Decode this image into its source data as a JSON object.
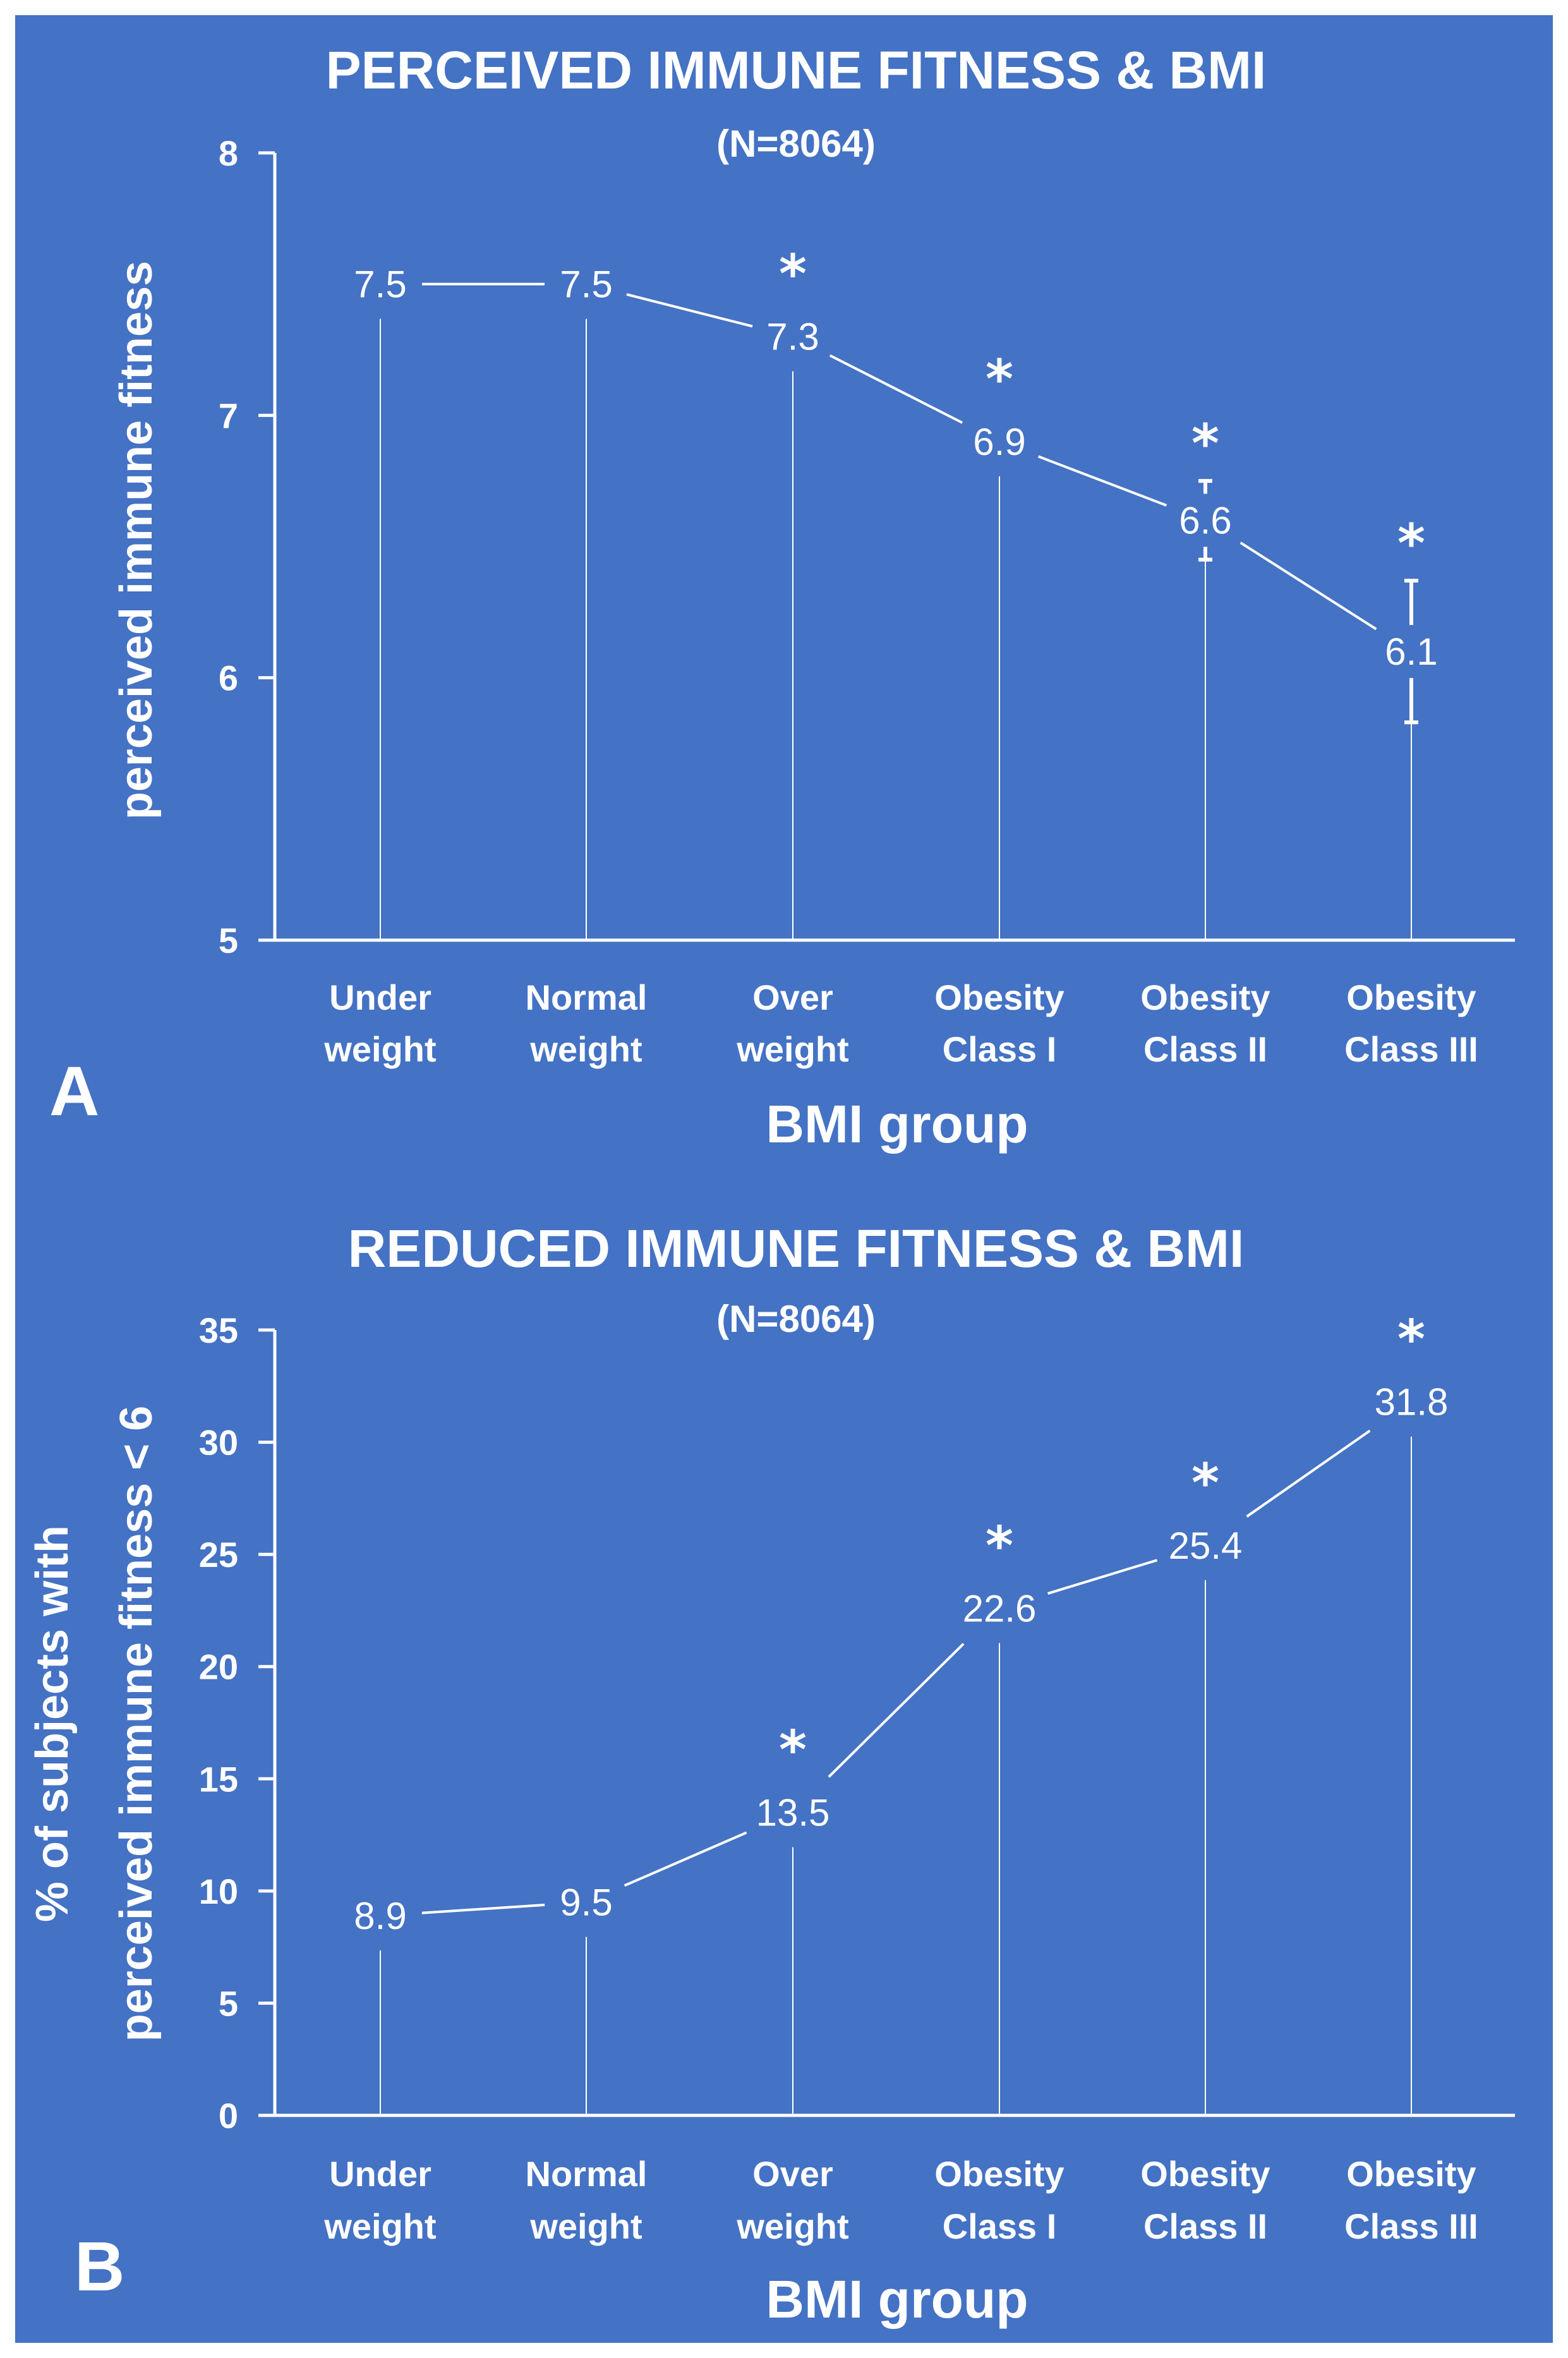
{
  "colors": {
    "background": "#4472C4",
    "border": "#ffffff",
    "foreground": "#ffffff"
  },
  "chart_data": [
    {
      "panel_label": "A",
      "type": "line",
      "title": "PERCEIVED IMMUNE FITNESS & BMI",
      "subtitle": "(N=8064)",
      "xlabel": "BMI group",
      "ylabel": "perceived immune fitness",
      "ylim": [
        5,
        8
      ],
      "yticks": [
        "5",
        "6",
        "7",
        "8"
      ],
      "categories": [
        [
          "Under",
          "weight"
        ],
        [
          "Normal",
          "weight"
        ],
        [
          "Over",
          "weight"
        ],
        [
          "Obesity",
          "Class I"
        ],
        [
          "Obesity",
          "Class II"
        ],
        [
          "Obesity",
          "Class III"
        ]
      ],
      "values": [
        7.5,
        7.5,
        7.3,
        6.9,
        6.6,
        6.1
      ],
      "value_labels": [
        "7.5",
        "7.5",
        "7.3",
        "6.9",
        "6.6",
        "6.1"
      ],
      "error_bars": [
        null,
        null,
        null,
        null,
        [
          6.45,
          6.75
        ],
        [
          5.83,
          6.37
        ]
      ],
      "significance": [
        "",
        "",
        "*",
        "*",
        "*",
        "*"
      ],
      "grid": false,
      "drop_lines": true
    },
    {
      "panel_label": "B",
      "type": "line",
      "title": "REDUCED IMMUNE FITNESS & BMI",
      "subtitle": "(N=8064)",
      "xlabel": "BMI group",
      "ylabel": [
        "% of subjects with",
        "perceived immune fitness < 6"
      ],
      "ylim": [
        0,
        35
      ],
      "yticks": [
        "0",
        "5",
        "10",
        "15",
        "20",
        "25",
        "30",
        "35"
      ],
      "categories": [
        [
          "Under",
          "weight"
        ],
        [
          "Normal",
          "weight"
        ],
        [
          "Over",
          "weight"
        ],
        [
          "Obesity",
          "Class I"
        ],
        [
          "Obesity",
          "Class II"
        ],
        [
          "Obesity",
          "Class III"
        ]
      ],
      "values": [
        8.9,
        9.5,
        13.5,
        22.6,
        25.4,
        31.8
      ],
      "value_labels": [
        "8.9",
        "9.5",
        "13.5",
        "22.6",
        "25.4",
        "31.8"
      ],
      "error_bars": [
        null,
        null,
        null,
        null,
        null,
        null
      ],
      "significance": [
        "",
        "",
        "*",
        "*",
        "*",
        "*"
      ],
      "grid": false,
      "drop_lines": true
    }
  ]
}
